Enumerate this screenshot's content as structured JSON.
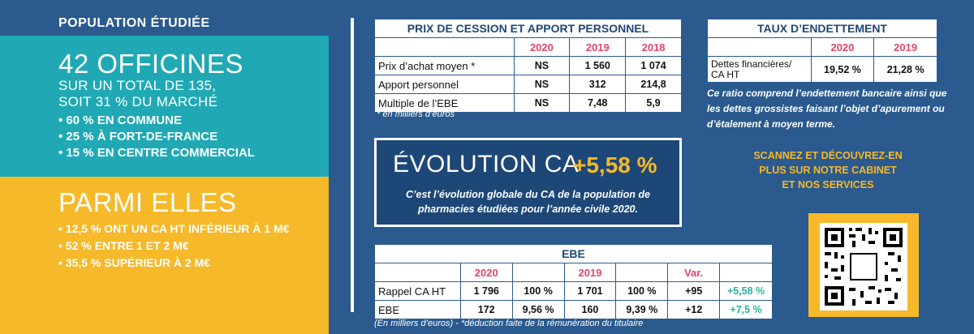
{
  "left": {
    "title": "POPULATION ÉTUDIÉE",
    "teal": {
      "headline": "42 OFFICINES",
      "sub1": "SUR UN TOTAL DE 135,",
      "sub2": "SOIT 31 % DU MARCHÉ",
      "bullets": [
        "60 % EN COMMUNE",
        "25 % À FORT-DE-FRANCE",
        "15 % EN CENTRE COMMERCIAL"
      ]
    },
    "yellow": {
      "headline": "PARMI ELLES",
      "bullets": [
        "12,5 % ONT UN CA HT INFÉRIEUR À 1 M€",
        "52 % ENTRE 1 ET 2 M€",
        "35,5 % SUPÉRIEUR À 2 M€"
      ]
    }
  },
  "prix": {
    "title": "PRIX DE CESSION ET APPORT PERSONNEL",
    "years": [
      "2020",
      "2019",
      "2018"
    ],
    "rows": [
      {
        "label": "Prix d’achat moyen *",
        "v": [
          "NS",
          "1 560",
          "1 074"
        ]
      },
      {
        "label": "Apport personnel",
        "v": [
          "NS",
          "312",
          "214,8"
        ]
      },
      {
        "label": "Multiple de l’EBE",
        "v": [
          "NS",
          "7,48",
          "5,9"
        ]
      }
    ],
    "note": "* en milliers d’euros"
  },
  "taux": {
    "title": "TAUX D’ENDETTEMENT",
    "years": [
      "2020",
      "2019"
    ],
    "row_label_1": "Dettes financières/",
    "row_label_2": "CA HT",
    "v": [
      "19,52 %",
      "21,28 %"
    ]
  },
  "ratio_text": "Ce ratio comprend l’endettement bancaire ainsi que les dettes grossistes faisant l’objet d’apurement ou d’étalement à moyen terme.",
  "evolution": {
    "label": "ÉVOLUTION CA",
    "value": "+5,58 %",
    "text1": "C’est l’évolution globale du CA de la population de",
    "text2": "pharmacies étudiées pour l’année civile 2020."
  },
  "scan": {
    "line1": "SCANNEZ ET DÉCOUVREZ-EN",
    "line2": "PLUS SUR NOTRE CABINET",
    "line3": "ET NOS SERVICES"
  },
  "ebe": {
    "title": "EBE",
    "years": [
      "2020",
      "2019",
      "Var."
    ],
    "rows": [
      {
        "label": "Rappel CA HT",
        "v": [
          "1 796",
          "100 %",
          "1 701",
          "100 %",
          "+95",
          "+5,58 %"
        ]
      },
      {
        "label": "EBE",
        "v": [
          "172",
          "9,56 %",
          "160",
          "9,39 %",
          "+12",
          "+7,5 %"
        ]
      }
    ]
  },
  "footnote": "(En milliers d’euros) - *déduction faite de la rémunération du titulaire",
  "colors": {
    "teal": "#20a9b4",
    "yellow": "#f6b929",
    "navy": "#2a5a8e",
    "dark": "#1d4777",
    "red": "#e0466a",
    "green": "#2bb29c"
  }
}
